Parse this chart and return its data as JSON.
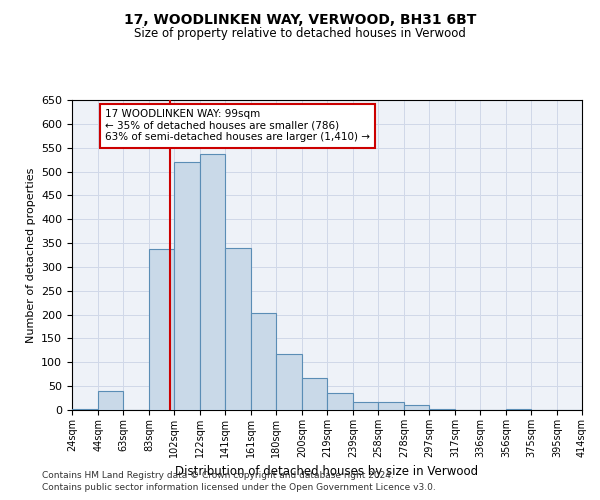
{
  "title1": "17, WOODLINKEN WAY, VERWOOD, BH31 6BT",
  "title2": "Size of property relative to detached houses in Verwood",
  "xlabel": "Distribution of detached houses by size in Verwood",
  "ylabel": "Number of detached properties",
  "footnote1": "Contains HM Land Registry data © Crown copyright and database right 2024.",
  "footnote2": "Contains public sector information licensed under the Open Government Licence v3.0.",
  "annotation_line1": "17 WOODLINKEN WAY: 99sqm",
  "annotation_line2": "← 35% of detached houses are smaller (786)",
  "annotation_line3": "63% of semi-detached houses are larger (1,410) →",
  "bar_left_edges": [
    24,
    44,
    63,
    83,
    102,
    122,
    141,
    161,
    180,
    200,
    219,
    239,
    258,
    278,
    297,
    317,
    336,
    356,
    375,
    395
  ],
  "bar_widths": [
    20,
    19,
    20,
    19,
    20,
    19,
    20,
    19,
    20,
    19,
    20,
    19,
    20,
    19,
    20,
    19,
    20,
    19,
    20,
    19
  ],
  "bar_heights": [
    2,
    40,
    0,
    338,
    520,
    537,
    340,
    203,
    118,
    67,
    35,
    17,
    17,
    11,
    3,
    0,
    0,
    3,
    0,
    0
  ],
  "bar_color": "#c9d9e8",
  "bar_edge_color": "#5a8db5",
  "marker_x": 99,
  "marker_color": "#cc0000",
  "ylim": [
    0,
    650
  ],
  "yticks": [
    0,
    50,
    100,
    150,
    200,
    250,
    300,
    350,
    400,
    450,
    500,
    550,
    600,
    650
  ],
  "xlim": [
    24,
    414
  ],
  "xtick_labels": [
    "24sqm",
    "44sqm",
    "63sqm",
    "83sqm",
    "102sqm",
    "122sqm",
    "141sqm",
    "161sqm",
    "180sqm",
    "200sqm",
    "219sqm",
    "239sqm",
    "258sqm",
    "278sqm",
    "297sqm",
    "317sqm",
    "336sqm",
    "356sqm",
    "375sqm",
    "395sqm",
    "414sqm"
  ],
  "xtick_positions": [
    24,
    44,
    63,
    83,
    102,
    122,
    141,
    161,
    180,
    200,
    219,
    239,
    258,
    278,
    297,
    317,
    336,
    356,
    375,
    395,
    414
  ],
  "grid_color": "#d0d8e8",
  "bg_color": "#eef2f8"
}
